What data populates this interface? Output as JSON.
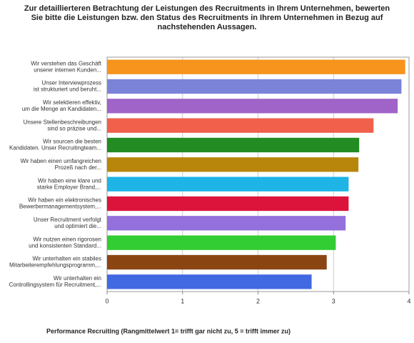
{
  "chart_data": {
    "type": "bar",
    "orientation": "horizontal",
    "title": [
      "Zur detaillierteren Betrachtung der Leistungen des Recruitments in Ihrem Unternehmen, bewerten",
      "Sie bitte die Leistungen bzw. den Status des Recruitments in Ihrem Unternehmen in Bezug auf",
      "nachstehenden Aussagen."
    ],
    "x_label": "Performance Recruiting  (Rangmittelwert 1= trifft gar nicht zu, 5 = trifft immer zu)",
    "categories": [
      [
        "Wir verstehen das Geschäft",
        "unserer internen Kunden..."
      ],
      [
        "Unser Interviewprozess",
        "ist strukturiert und beruht..."
      ],
      [
        "Wir selektieren effektiv,",
        "um die Menge an Kandidaten..."
      ],
      [
        "Unsere Stellenbeschreibungen",
        "sind so präzise und..."
      ],
      [
        "Wir sourcen die besten",
        "Kandidaten. Unser Recruitingteam..."
      ],
      [
        "Wir haben einen umfangreichen",
        "Prozeß nach der..."
      ],
      [
        "Wir haben eine klare und",
        "starke Employer Brand,..."
      ],
      [
        "Wir haben ein elektronisches",
        "Bewerbermanagementsystem,..."
      ],
      [
        "Unser Recruitment verfolgt",
        "und optimiert die..."
      ],
      [
        "Wir nutzen einen rigorosen",
        "und konsistenten Standard..."
      ],
      [
        "Wir unterhalten ein stabiles",
        "Mitarbeiterempfehlungsprogramm,..."
      ],
      [
        "Wir unterhalten ein",
        "Controllingsystem für Recruitment,..."
      ]
    ],
    "values": [
      3.95,
      3.9,
      3.85,
      3.53,
      3.34,
      3.33,
      3.2,
      3.2,
      3.16,
      3.03,
      2.91,
      2.71
    ],
    "colors": [
      "#f7941d",
      "#7b83d9",
      "#a064c8",
      "#f0604a",
      "#228b22",
      "#b8860b",
      "#1eb4e6",
      "#dc143c",
      "#9370db",
      "#32cd32",
      "#8b4513",
      "#4169e1"
    ],
    "xlim": [
      0,
      4
    ],
    "xticks": [
      0,
      1,
      2,
      3,
      4
    ],
    "grid": true
  }
}
